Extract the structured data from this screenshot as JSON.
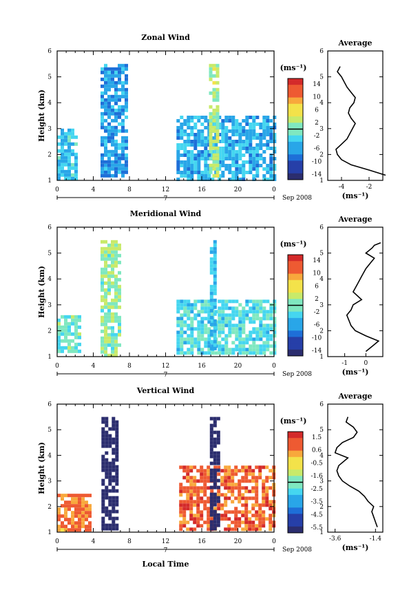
{
  "figure": {
    "date_label": "Sep 2008",
    "day_label": "7",
    "xlabel": "Local Time",
    "colorbar_unit": "(ms⁻¹)",
    "profile_title": "Average",
    "profile_unit": "(ms⁻¹)"
  },
  "chart_data": [
    {
      "type": "heatmap",
      "title": "Zonal Wind",
      "ylabel": "Height (km)",
      "x_ticks": [
        "0",
        "4",
        "8",
        "12",
        "16",
        "20",
        "0"
      ],
      "y_ticks": [
        "1",
        "2",
        "3",
        "4",
        "5",
        "6"
      ],
      "xlim": [
        0,
        24
      ],
      "ylim": [
        1,
        6
      ],
      "colorbar_ticks": [
        "14",
        "10",
        "6",
        "2",
        "-2",
        "-6",
        "-10",
        "-14"
      ],
      "colorbar_range": [
        -16,
        16
      ],
      "colorscale": [
        "#2b2d6e",
        "#263fa8",
        "#1e6fd8",
        "#29a6e8",
        "#45d6f0",
        "#7fe8c0",
        "#c8ea6a",
        "#f3e24a",
        "#f8a83c",
        "#ee5a32",
        "#d42a2a"
      ],
      "data_regions": [
        {
          "x": [
            4.8,
            7.8
          ],
          "y": [
            1.2,
            5.5
          ],
          "value": -6
        },
        {
          "x": [
            0,
            2.2
          ],
          "y": [
            1.1,
            3.0
          ],
          "value": -4
        },
        {
          "x": [
            13.2,
            24
          ],
          "y": [
            1.1,
            3.5
          ],
          "value": -5
        },
        {
          "x": [
            16.8,
            17.8
          ],
          "y": [
            1.2,
            5.5
          ],
          "value": 2
        }
      ]
    },
    {
      "type": "heatmap",
      "title": "Meridional Wind",
      "ylabel": "Height (km)",
      "x_ticks": [
        "0",
        "4",
        "8",
        "12",
        "16",
        "20",
        "0"
      ],
      "y_ticks": [
        "1",
        "2",
        "3",
        "4",
        "5",
        "6"
      ],
      "xlim": [
        0,
        24
      ],
      "ylim": [
        1,
        6
      ],
      "colorbar_ticks": [
        "14",
        "10",
        "6",
        "2",
        "-2",
        "-6",
        "-10",
        "-14"
      ],
      "colorbar_range": [
        -16,
        16
      ],
      "colorscale": [
        "#2b2d6e",
        "#263fa8",
        "#1e6fd8",
        "#29a6e8",
        "#45d6f0",
        "#7fe8c0",
        "#c8ea6a",
        "#f3e24a",
        "#f8a83c",
        "#ee5a32",
        "#d42a2a"
      ],
      "data_regions": [
        {
          "x": [
            4.8,
            6.8
          ],
          "y": [
            1.1,
            5.5
          ],
          "value": 1
        },
        {
          "x": [
            0,
            2.5
          ],
          "y": [
            1.2,
            2.6
          ],
          "value": -1
        },
        {
          "x": [
            13.2,
            24
          ],
          "y": [
            1.1,
            3.2
          ],
          "value": -2
        },
        {
          "x": [
            16.9,
            17.6
          ],
          "y": [
            1.3,
            5.5
          ],
          "value": -4
        }
      ]
    },
    {
      "type": "heatmap",
      "title": "Vertical Wind",
      "ylabel": "Height (km)",
      "x_ticks": [
        "0",
        "4",
        "8",
        "12",
        "16",
        "20",
        "0"
      ],
      "y_ticks": [
        "1",
        "2",
        "3",
        "4",
        "5",
        "6"
      ],
      "xlim": [
        0,
        24
      ],
      "ylim": [
        1,
        6
      ],
      "colorbar_ticks": [
        "1.5",
        "0.6",
        "-0.5",
        "-1.6",
        "-2.5",
        "-3.5",
        "-4.5",
        "-5.5"
      ],
      "colorbar_range": [
        -6,
        2
      ],
      "colorscale": [
        "#2b2d6e",
        "#263fa8",
        "#1e6fd8",
        "#29a6e8",
        "#45d6f0",
        "#7fe8c0",
        "#c8ea6a",
        "#f3e24a",
        "#f8a83c",
        "#ee5a32",
        "#d42a2a"
      ],
      "data_regions": [
        {
          "x": [
            4.9,
            6.8
          ],
          "y": [
            1.1,
            5.5
          ],
          "value": -6
        },
        {
          "x": [
            0,
            3.5
          ],
          "y": [
            1.1,
            2.5
          ],
          "value": 0.5
        },
        {
          "x": [
            13.5,
            24
          ],
          "y": [
            1.1,
            3.6
          ],
          "value": 0.8
        },
        {
          "x": [
            16.9,
            17.8
          ],
          "y": [
            1.1,
            5.5
          ],
          "value": -6
        }
      ]
    },
    {
      "type": "line",
      "title": "Average",
      "xlabel": "(ms⁻¹)",
      "x_ticks": [
        "-4",
        "-2"
      ],
      "xlim": [
        -5,
        -1
      ],
      "y_ticks": [
        "1",
        "2",
        "3",
        "4",
        "5",
        "6"
      ],
      "ylim": [
        1,
        6
      ],
      "series": [
        {
          "x": [
            -0.8,
            -2.0,
            -3.3,
            -4.0,
            -4.3,
            -4.4,
            -4.0,
            -3.6,
            -3.4,
            -3.2,
            -3.0,
            -3.3,
            -3.5,
            -3.4,
            -3.1,
            -3.0,
            -3.3,
            -3.6,
            -3.8,
            -4.0,
            -4.3,
            -4.1
          ],
          "y": [
            1.2,
            1.4,
            1.6,
            1.8,
            2.0,
            2.2,
            2.4,
            2.6,
            2.8,
            3.0,
            3.2,
            3.4,
            3.6,
            3.8,
            4.0,
            4.2,
            4.4,
            4.6,
            4.8,
            5.0,
            5.2,
            5.4
          ]
        }
      ]
    },
    {
      "type": "line",
      "title": "Average",
      "xlabel": "(ms⁻¹)",
      "x_ticks": [
        "-1",
        "0"
      ],
      "xlim": [
        -1.8,
        0.8
      ],
      "y_ticks": [
        "1",
        "2",
        "3",
        "4",
        "5",
        "6"
      ],
      "ylim": [
        1,
        6
      ],
      "series": [
        {
          "x": [
            0.0,
            0.3,
            0.6,
            0.0,
            -0.5,
            -0.7,
            -0.8,
            -0.9,
            -0.7,
            -0.6,
            -0.2,
            -0.6,
            -0.4,
            -0.2,
            0.0,
            0.2,
            0.4,
            0.0,
            0.3,
            0.4,
            0.7
          ],
          "y": [
            1.2,
            1.4,
            1.6,
            1.8,
            2.0,
            2.2,
            2.4,
            2.6,
            2.8,
            3.0,
            3.2,
            3.5,
            3.8,
            4.1,
            4.4,
            4.6,
            4.8,
            5.0,
            5.2,
            5.3,
            5.4
          ]
        }
      ]
    },
    {
      "type": "line",
      "title": "Average",
      "xlabel": "(ms⁻¹)",
      "x_ticks": [
        "-3.6",
        "-1.4"
      ],
      "xlim": [
        -4.0,
        -1.0
      ],
      "y_ticks": [
        "1",
        "2",
        "3",
        "4",
        "5",
        "6"
      ],
      "ylim": [
        1,
        6
      ],
      "series": [
        {
          "x": [
            -1.3,
            -1.4,
            -1.5,
            -1.6,
            -1.5,
            -1.8,
            -2.0,
            -2.3,
            -2.8,
            -3.2,
            -3.4,
            -3.5,
            -3.4,
            -2.9,
            -3.6,
            -3.5,
            -3.2,
            -2.6,
            -2.4,
            -2.6,
            -3.0,
            -2.9
          ],
          "y": [
            1.2,
            1.4,
            1.6,
            1.8,
            2.0,
            2.2,
            2.4,
            2.6,
            2.8,
            3.0,
            3.2,
            3.4,
            3.6,
            3.9,
            4.1,
            4.3,
            4.5,
            4.7,
            4.9,
            5.1,
            5.3,
            5.5
          ]
        }
      ]
    }
  ]
}
